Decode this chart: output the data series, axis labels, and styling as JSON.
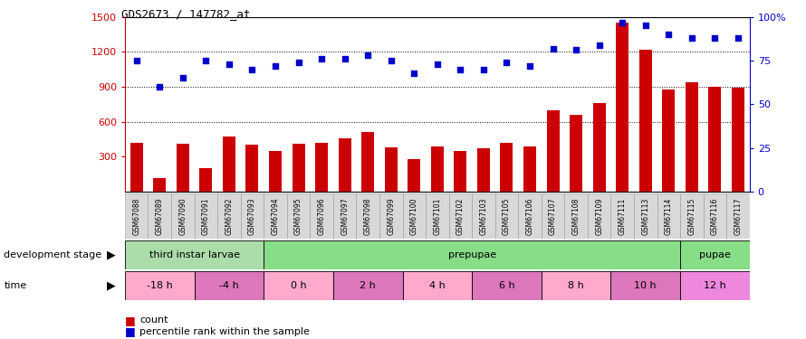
{
  "title": "GDS2673 / 147782_at",
  "samples": [
    "GSM67088",
    "GSM67089",
    "GSM67090",
    "GSM67091",
    "GSM67092",
    "GSM67093",
    "GSM67094",
    "GSM67095",
    "GSM67096",
    "GSM67097",
    "GSM67098",
    "GSM67099",
    "GSM67100",
    "GSM67101",
    "GSM67102",
    "GSM67103",
    "GSM67105",
    "GSM67106",
    "GSM67107",
    "GSM67108",
    "GSM67109",
    "GSM67111",
    "GSM67113",
    "GSM67114",
    "GSM67115",
    "GSM67116",
    "GSM67117"
  ],
  "counts": [
    420,
    115,
    410,
    200,
    470,
    400,
    350,
    410,
    420,
    460,
    510,
    380,
    280,
    390,
    350,
    370,
    420,
    390,
    700,
    660,
    760,
    1450,
    1220,
    880,
    940,
    900,
    890
  ],
  "percentile": [
    75,
    60,
    65,
    75,
    73,
    70,
    72,
    74,
    76,
    76,
    78,
    75,
    68,
    73,
    70,
    70,
    74,
    72,
    82,
    81,
    84,
    97,
    95,
    90,
    88,
    88,
    88
  ],
  "count_color": "#cc0000",
  "percentile_color": "#0000cc",
  "ylim_left": [
    0,
    1500
  ],
  "ylim_right": [
    0,
    100
  ],
  "yticks_left": [
    300,
    600,
    900,
    1200,
    1500
  ],
  "yticks_right": [
    0,
    25,
    50,
    75,
    100
  ],
  "right_tick_labels": [
    "0",
    "25",
    "50",
    "75",
    "100%"
  ],
  "bg_color": "#ffffff",
  "plot_bg_color": "#ffffff",
  "grid_color": "#333333",
  "bar_width": 0.55,
  "marker_size": 25,
  "dev_stages": [
    {
      "label": "third instar larvae",
      "start": 0,
      "end": 6,
      "color": "#aaddaa"
    },
    {
      "label": "prepupae",
      "start": 6,
      "end": 24,
      "color": "#88dd88"
    },
    {
      "label": "pupae",
      "start": 24,
      "end": 27,
      "color": "#88dd88"
    }
  ],
  "time_segs": [
    {
      "label": "-18 h",
      "start": 0,
      "end": 3,
      "color": "#ffaacc"
    },
    {
      "label": "-4 h",
      "start": 3,
      "end": 6,
      "color": "#dd77bb"
    },
    {
      "label": "0 h",
      "start": 6,
      "end": 9,
      "color": "#ffaacc"
    },
    {
      "label": "2 h",
      "start": 9,
      "end": 12,
      "color": "#dd77bb"
    },
    {
      "label": "4 h",
      "start": 12,
      "end": 15,
      "color": "#ffaacc"
    },
    {
      "label": "6 h",
      "start": 15,
      "end": 18,
      "color": "#dd77bb"
    },
    {
      "label": "8 h",
      "start": 18,
      "end": 21,
      "color": "#ffaacc"
    },
    {
      "label": "10 h",
      "start": 21,
      "end": 24,
      "color": "#dd77bb"
    },
    {
      "label": "12 h",
      "start": 24,
      "end": 27,
      "color": "#ee88dd"
    }
  ]
}
